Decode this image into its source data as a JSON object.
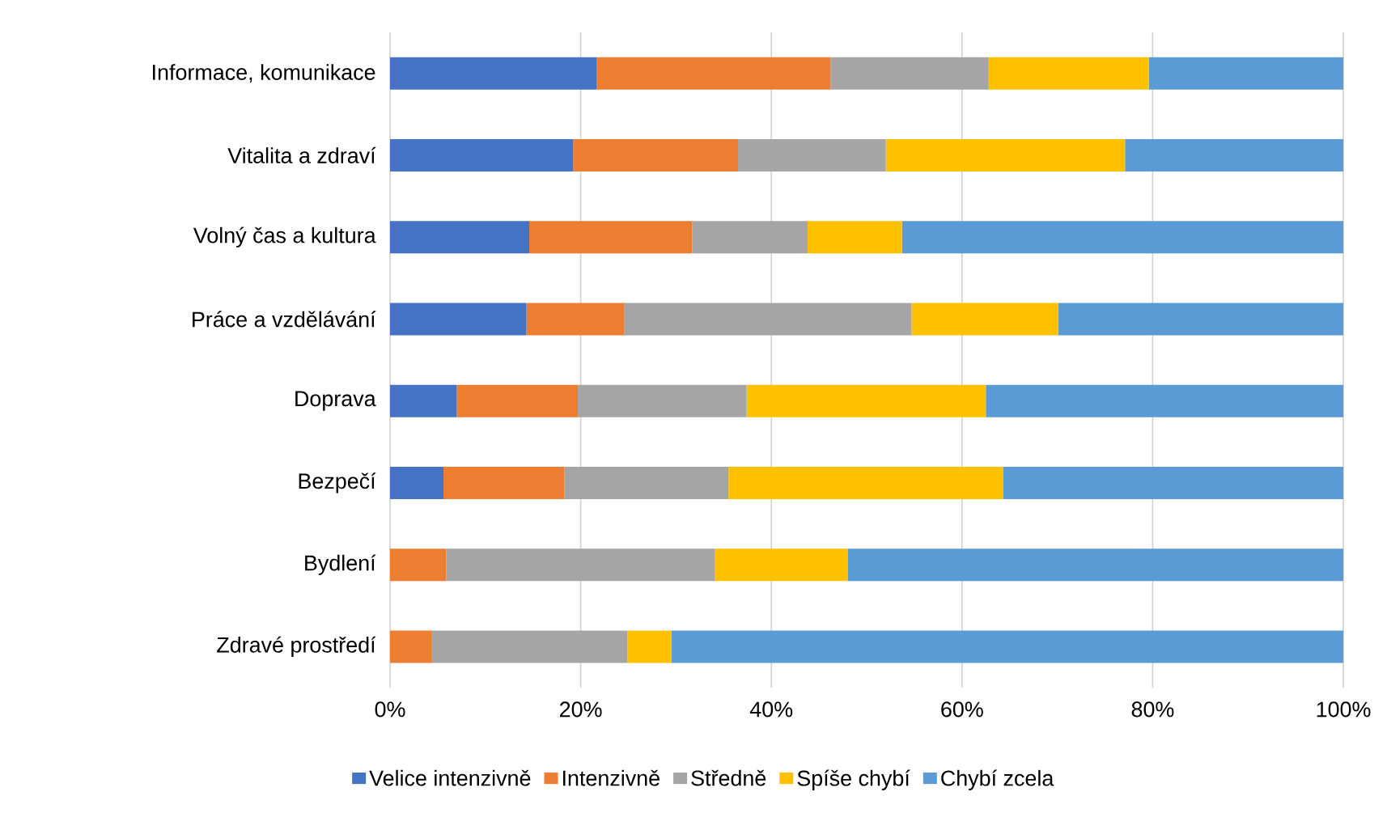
{
  "chart_data": {
    "type": "bar",
    "orientation": "horizontal",
    "stacked": true,
    "categories": [
      "Informace, komunikace",
      "Vitalita a zdraví",
      "Volný čas a kultura",
      "Práce a vzdělávání",
      "Doprava",
      "Bezpečí",
      "Bydlení",
      "Zdravé prostředí"
    ],
    "series": [
      {
        "name": "Velice intenzivně",
        "color": "#4472c4",
        "values": [
          21.7,
          19.2,
          14.6,
          14.3,
          7.0,
          5.6,
          0,
          0
        ]
      },
      {
        "name": "Intenzivně",
        "color": "#ed7d31",
        "values": [
          24.5,
          17.3,
          17.1,
          10.3,
          12.7,
          12.7,
          5.9,
          4.4
        ]
      },
      {
        "name": "Středně",
        "color": "#a5a5a5",
        "values": [
          16.6,
          15.5,
          12.1,
          30.1,
          17.7,
          17.2,
          28.2,
          20.5
        ]
      },
      {
        "name": "Spíše chybí",
        "color": "#ffc000",
        "values": [
          16.8,
          25.1,
          9.9,
          15.4,
          25.1,
          28.8,
          13.9,
          4.6
        ]
      },
      {
        "name": "Chybí zcela",
        "color": "#5b9bd5",
        "values": [
          20.4,
          22.9,
          46.3,
          29.9,
          37.5,
          35.7,
          52.0,
          70.5
        ]
      }
    ],
    "xlim": [
      0,
      100
    ],
    "xticks": [
      {
        "value": 0,
        "label": "0%"
      },
      {
        "value": 20,
        "label": "20%"
      },
      {
        "value": 40,
        "label": "40%"
      },
      {
        "value": 60,
        "label": "60%"
      },
      {
        "value": 80,
        "label": "80%"
      },
      {
        "value": 100,
        "label": "100%"
      }
    ],
    "grid": "x",
    "legend": "bottom"
  }
}
